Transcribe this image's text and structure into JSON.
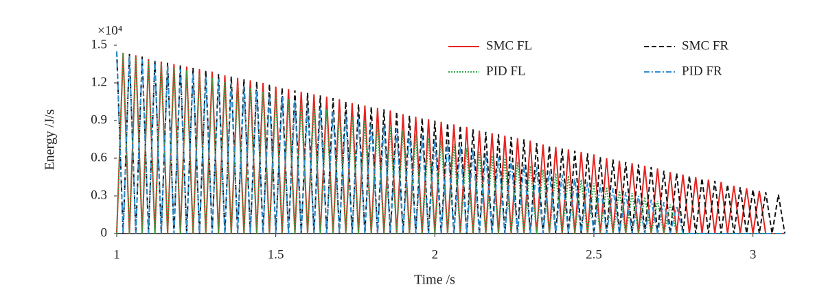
{
  "chart_data": {
    "type": "line",
    "x_label": "Time /s",
    "y_label": "Energy /J/s",
    "y_multiplier": "×10⁴",
    "x": [
      1,
      1.02,
      1.04,
      1.06,
      1.08,
      1.1,
      1.12,
      1.14,
      1.16,
      1.18,
      1.2,
      1.22,
      1.24,
      1.26,
      1.28,
      1.3,
      1.32,
      1.34,
      1.36,
      1.38,
      1.4,
      1.42,
      1.44,
      1.46,
      1.48,
      1.5,
      1.52,
      1.54,
      1.56,
      1.58,
      1.6,
      1.62,
      1.64,
      1.66,
      1.68,
      1.7,
      1.72,
      1.74,
      1.76,
      1.78,
      1.8,
      1.82,
      1.84,
      1.86,
      1.88,
      1.9,
      1.92,
      1.94,
      1.96,
      1.98,
      2,
      2.02,
      2.04,
      2.06,
      2.08,
      2.1,
      2.12,
      2.14,
      2.16,
      2.18,
      2.2,
      2.22,
      2.24,
      2.26,
      2.28,
      2.3,
      2.32,
      2.34,
      2.36,
      2.38,
      2.4,
      2.42,
      2.44,
      2.46,
      2.48,
      2.5,
      2.52,
      2.54,
      2.56,
      2.58,
      2.6,
      2.62,
      2.64,
      2.66,
      2.68,
      2.7,
      2.72,
      2.74,
      2.76,
      2.78,
      2.8,
      2.82,
      2.84,
      2.86,
      2.88,
      2.9,
      2.92,
      2.94,
      2.96,
      2.98,
      3,
      3.02,
      3.04,
      3.06,
      3.08,
      3.1
    ],
    "series": [
      {
        "name": "SMC FL",
        "color": "#e8231f",
        "linestyle": "solid",
        "values": [
          0,
          1.44,
          0,
          1.42,
          0,
          1.39,
          0,
          1.37,
          0,
          1.35,
          0,
          1.33,
          0,
          1.31,
          0,
          1.29,
          0,
          1.26,
          0,
          1.24,
          0,
          1.22,
          0,
          1.2,
          0,
          1.17,
          0,
          1.15,
          0,
          1.13,
          0,
          1.11,
          0,
          1.09,
          0,
          1.07,
          0,
          1.04,
          0,
          1.02,
          0,
          1,
          0,
          0.98,
          0,
          0.95,
          0,
          0.93,
          0,
          0.91,
          0,
          0.89,
          0,
          0.87,
          0,
          0.85,
          0,
          0.82,
          0,
          0.8,
          0,
          0.78,
          0,
          0.76,
          0,
          0.74,
          0,
          0.71,
          0,
          0.69,
          0,
          0.67,
          0,
          0.65,
          0,
          0.63,
          0,
          0.6,
          0,
          0.58,
          0,
          0.56,
          0,
          0.54,
          0,
          0.52,
          0,
          0.49,
          0,
          0.47,
          0,
          0.45,
          0,
          0.43,
          0,
          0.41,
          0,
          0.38,
          0,
          0.36,
          0,
          0.34,
          0,
          0,
          0,
          0
        ]
      },
      {
        "name": "SMC FR",
        "color": "#111111",
        "linestyle": "dashed",
        "values": [
          1.45,
          0,
          1.43,
          0,
          1.41,
          0,
          1.38,
          0,
          1.36,
          0,
          1.34,
          0,
          1.32,
          0,
          1.3,
          0,
          1.27,
          0,
          1.25,
          0,
          1.23,
          0,
          1.21,
          0,
          1.19,
          0,
          1.16,
          0,
          1.14,
          0,
          1.12,
          0,
          1.1,
          0,
          1.08,
          0,
          1.05,
          0,
          1.03,
          0,
          1.01,
          0,
          0.99,
          0,
          0.97,
          0,
          0.94,
          0,
          0.92,
          0,
          0.9,
          0,
          0.88,
          0,
          0.86,
          0,
          0.83,
          0,
          0.81,
          0,
          0.79,
          0,
          0.77,
          0,
          0.75,
          0,
          0.72,
          0,
          0.7,
          0,
          0.68,
          0,
          0.66,
          0,
          0.64,
          0,
          0.61,
          0,
          0.59,
          0,
          0.57,
          0,
          0.55,
          0,
          0.53,
          0,
          0.5,
          0,
          0.48,
          0,
          0.46,
          0,
          0.44,
          0,
          0.42,
          0,
          0.39,
          0,
          0.37,
          0,
          0.35,
          0,
          0.33,
          0,
          0.31,
          0
        ]
      },
      {
        "name": "PID FL",
        "color": "#2ca84a",
        "linestyle": "dotted",
        "values": [
          0,
          1.44,
          0,
          1.41,
          0,
          1.38,
          0,
          1.35,
          0,
          1.32,
          0,
          1.3,
          0,
          1.27,
          0,
          1.24,
          0,
          1.21,
          0,
          1.18,
          0,
          1.16,
          0,
          1.13,
          0,
          1.1,
          0,
          1.07,
          0,
          1.04,
          0,
          1.02,
          0,
          0.99,
          0,
          0.96,
          0,
          0.93,
          0,
          0.9,
          0,
          0.88,
          0,
          0.85,
          0,
          0.82,
          0,
          0.79,
          0,
          0.76,
          0,
          0.74,
          0,
          0.71,
          0,
          0.68,
          0,
          0.65,
          0,
          0.62,
          0,
          0.6,
          0,
          0.57,
          0,
          0.54,
          0,
          0.51,
          0,
          0.48,
          0,
          0.46,
          0,
          0.43,
          0,
          0.4,
          0,
          0.37,
          0,
          0.34,
          0,
          0.32,
          0,
          0.29,
          0,
          0.26,
          0,
          0.23,
          0,
          0,
          0,
          0,
          0,
          0,
          0,
          0,
          0,
          0,
          0,
          0,
          0,
          0,
          0,
          0,
          0,
          0
        ]
      },
      {
        "name": "PID FR",
        "color": "#2e8fd0",
        "linestyle": "dashdot",
        "values": [
          1.45,
          0,
          1.42,
          0,
          1.39,
          0,
          1.37,
          0,
          1.34,
          0,
          1.31,
          0,
          1.28,
          0,
          1.25,
          0,
          1.23,
          0,
          1.2,
          0,
          1.17,
          0,
          1.14,
          0,
          1.11,
          0,
          1.09,
          0,
          1.06,
          0,
          1.03,
          0,
          1,
          0,
          0.97,
          0,
          0.95,
          0,
          0.92,
          0,
          0.89,
          0,
          0.86,
          0,
          0.83,
          0,
          0.81,
          0,
          0.78,
          0,
          0.75,
          0,
          0.72,
          0,
          0.69,
          0,
          0.67,
          0,
          0.64,
          0,
          0.61,
          0,
          0.58,
          0,
          0.55,
          0,
          0.53,
          0,
          0.5,
          0,
          0.47,
          0,
          0.44,
          0,
          0.41,
          0,
          0.39,
          0,
          0.36,
          0,
          0.33,
          0,
          0.3,
          0,
          0.27,
          0,
          0.25,
          0,
          0.22,
          0,
          0,
          0,
          0,
          0,
          0,
          0,
          0,
          0,
          0,
          0,
          0,
          0,
          0,
          0,
          0,
          0
        ]
      }
    ],
    "xlim": [
      1,
      3.1
    ],
    "xticks": [
      1,
      1.5,
      2,
      2.5,
      3
    ],
    "ylim": [
      0,
      1.5
    ],
    "yticks": [
      0,
      0.3,
      0.6,
      0.9,
      1.2,
      1.5
    ],
    "legend": "upper right"
  }
}
